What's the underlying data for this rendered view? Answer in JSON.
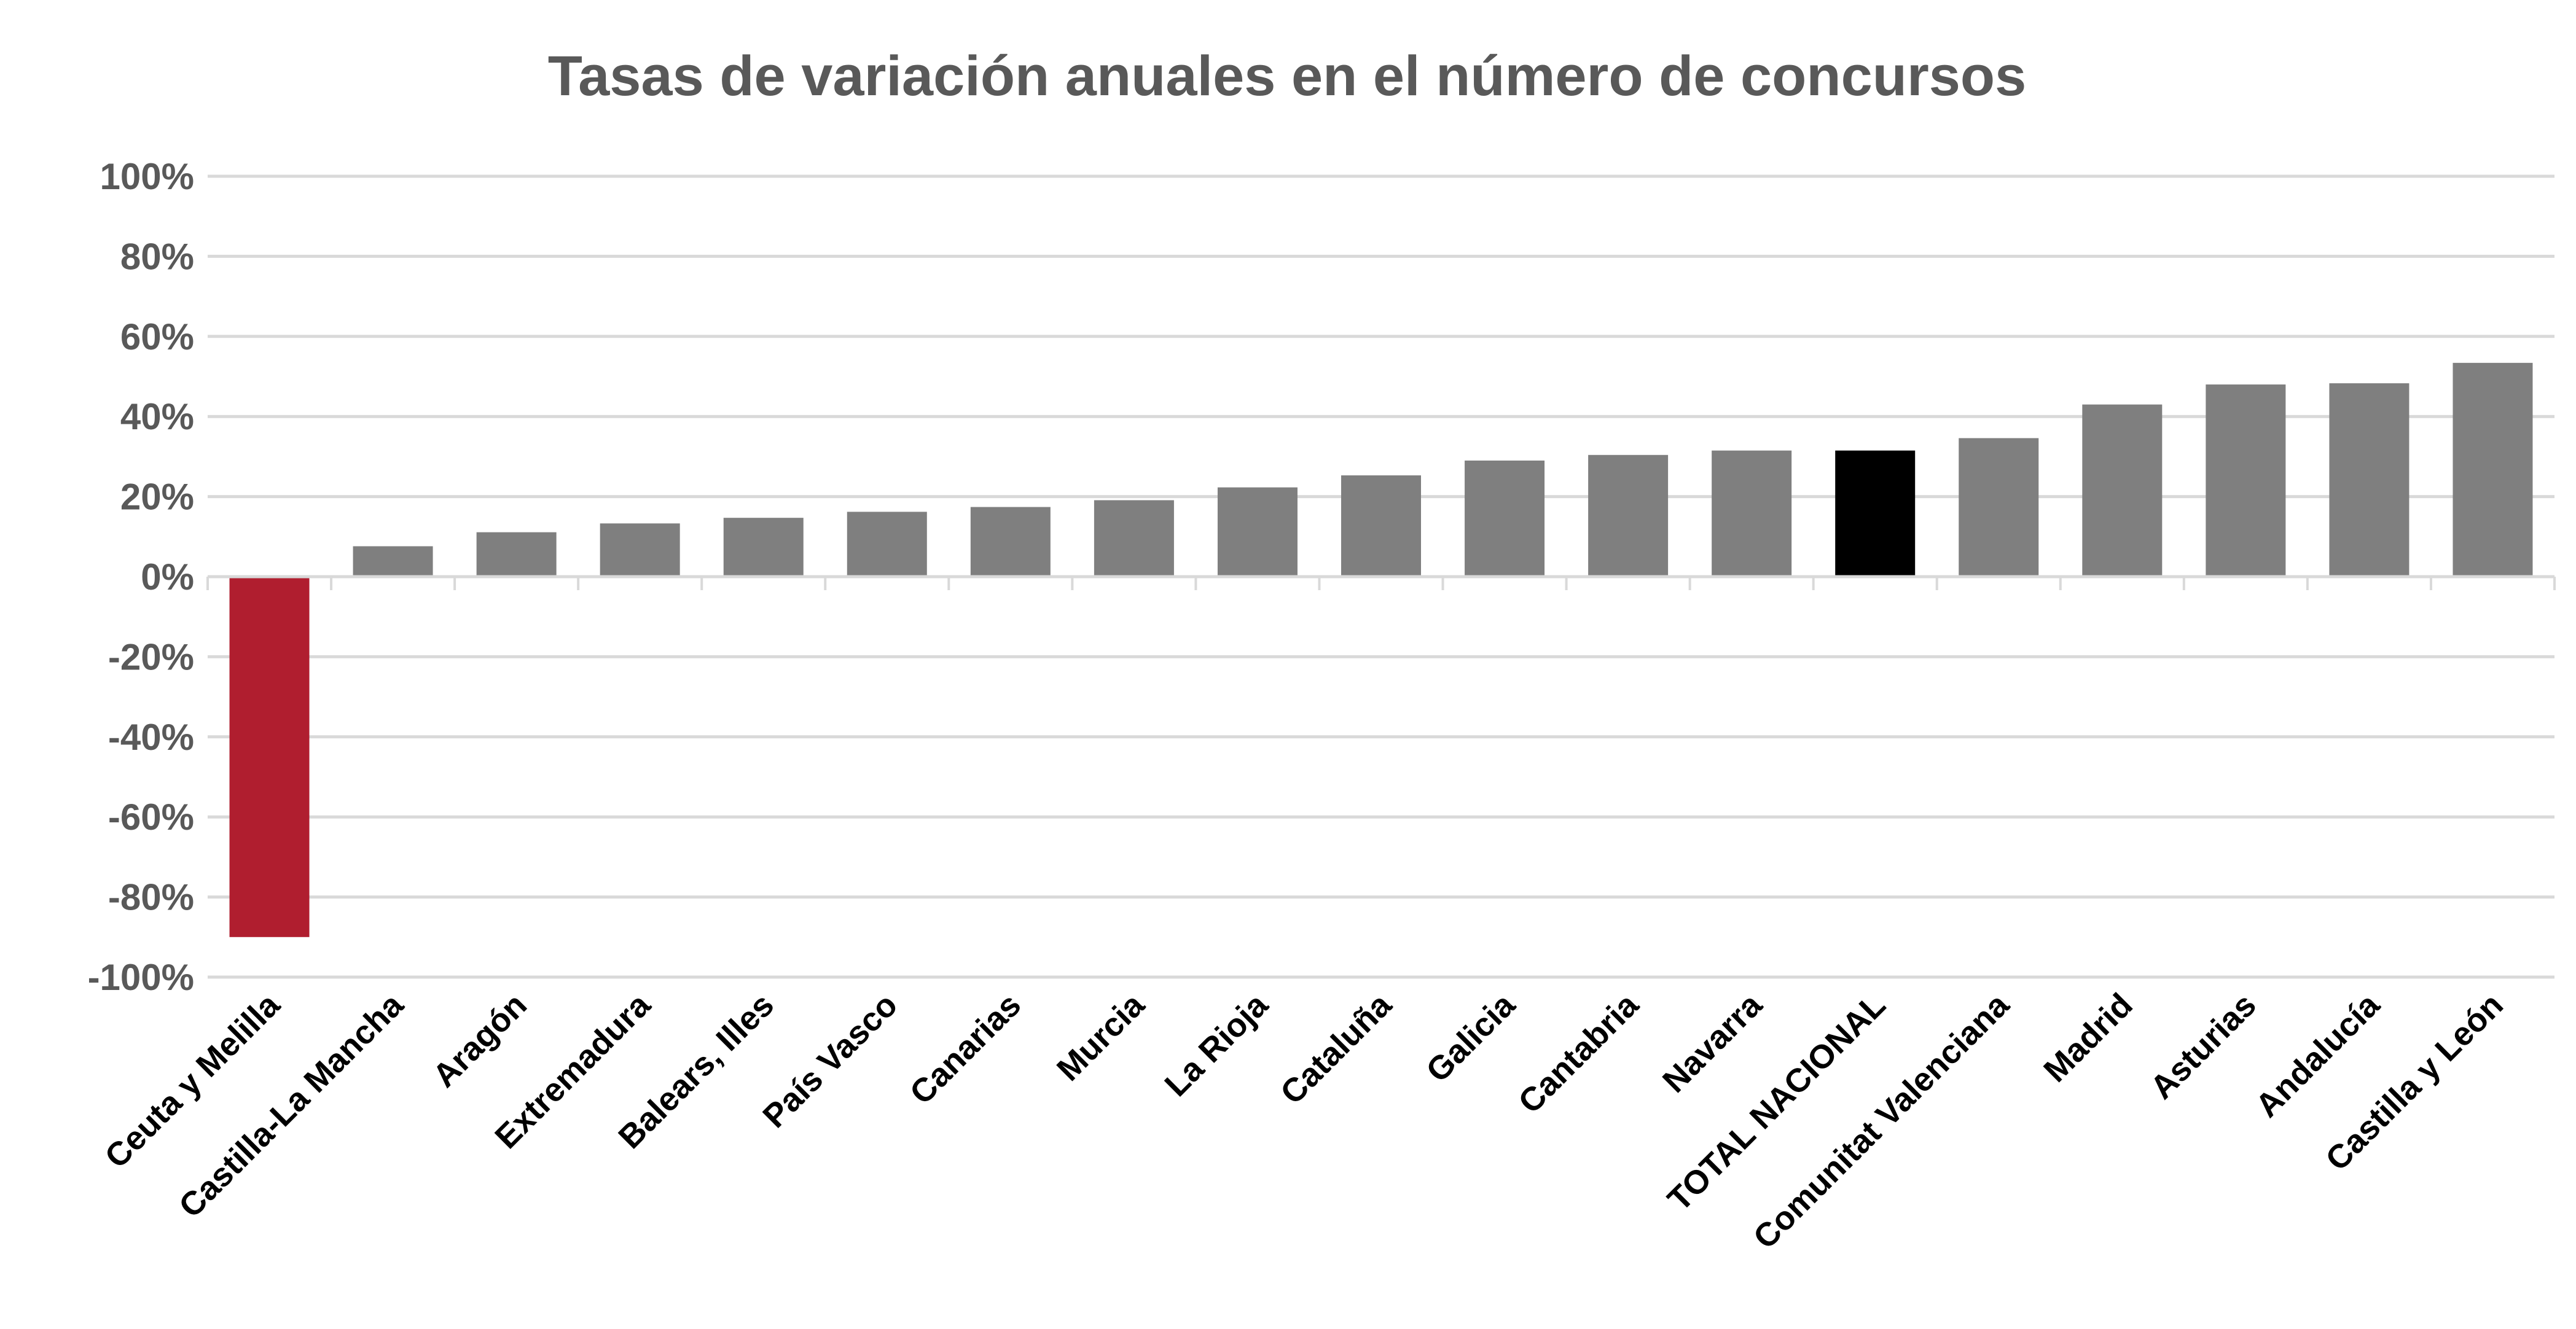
{
  "chart_data": {
    "type": "bar",
    "title": "Tasas de variación anuales en el número de concursos",
    "xlabel": "",
    "ylabel": "",
    "ylim": [
      -100,
      100
    ],
    "yticks": [
      100,
      80,
      60,
      40,
      20,
      0,
      -20,
      -40,
      -60,
      -80,
      -100
    ],
    "ytick_labels": [
      "100%",
      "80%",
      "60%",
      "40%",
      "20%",
      "0%",
      "-20%",
      "-40%",
      "-60%",
      "-80%",
      "-100%"
    ],
    "grid": true,
    "legend": "none",
    "categories": [
      "Ceuta y Melilla",
      "Castilla-La Mancha",
      "Aragón",
      "Extremadura",
      "Balears, Illes",
      "País Vasco",
      "Canarias",
      "Murcia",
      "La Rioja",
      "Cataluña",
      "Galicia",
      "Cantabria",
      "Navarra",
      "TOTAL NACIONAL",
      "Comunitat Valenciana",
      "Madrid",
      "Asturias",
      "Andalucía",
      "Castilla y León"
    ],
    "values": [
      -90.0,
      7.6,
      11.1,
      13.3,
      14.7,
      16.2,
      17.4,
      19.1,
      22.3,
      25.3,
      29.0,
      30.4,
      31.5,
      31.5,
      34.6,
      43.0,
      48.0,
      48.3,
      53.4
    ],
    "colors": {
      "default": "#7f7f7f",
      "negative": "#b01e2f",
      "total": "#000000"
    }
  }
}
